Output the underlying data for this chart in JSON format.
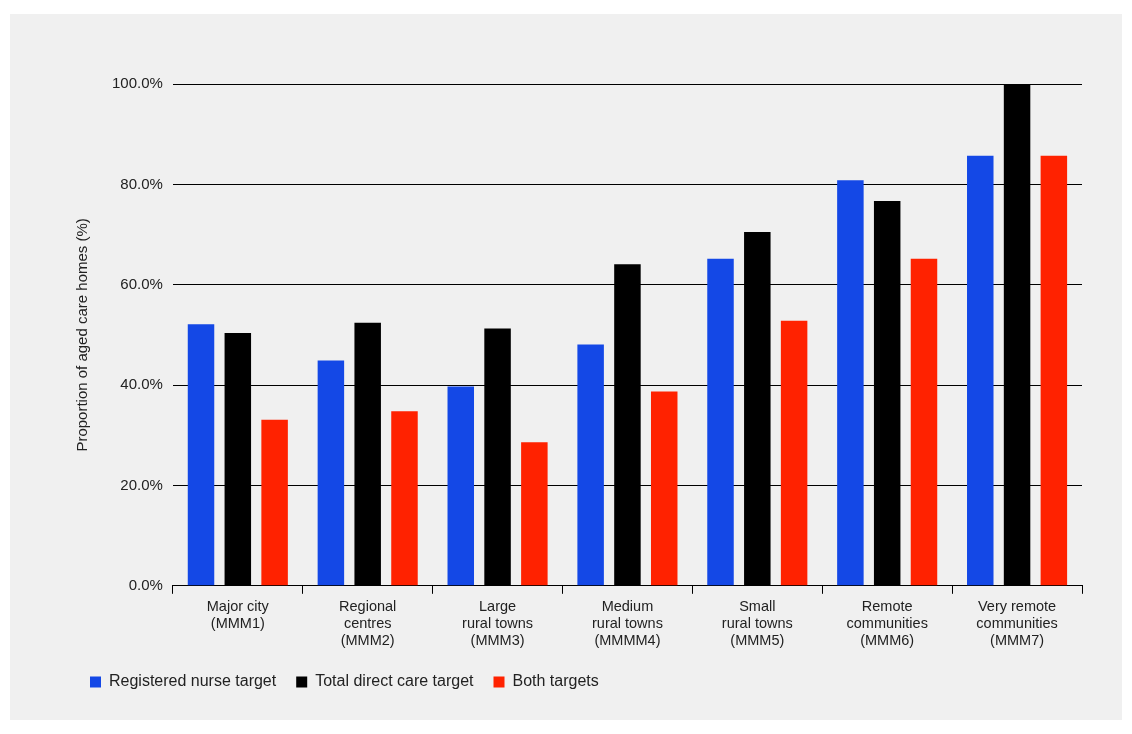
{
  "chart_data": {
    "type": "bar",
    "ylabel": "Proportion of aged care homes (%)",
    "categories": [
      "Major city (MMM1)",
      "Regional centres (MMM2)",
      "Large rural towns (MMM3)",
      "Medium rural towns (MMMM4)",
      "Small rural towns (MMM5)",
      "Remote communities (MMM6)",
      "Very remote communities (MMM7)"
    ],
    "series": [
      {
        "name": "Registered nurse target",
        "color": "#1448e6",
        "values": [
          52.1,
          44.9,
          39.7,
          48.1,
          65.2,
          80.8,
          85.7
        ]
      },
      {
        "name": "Total direct care target",
        "color": "#000000",
        "values": [
          50.4,
          52.4,
          51.3,
          64.1,
          70.5,
          76.7,
          100
        ]
      },
      {
        "name": "Both targets",
        "color": "#ff2200",
        "values": [
          33.1,
          34.8,
          28.6,
          38.7,
          52.8,
          65.2,
          85.7
        ]
      }
    ],
    "ylim": [
      0,
      100
    ],
    "yticks": [
      {
        "value": 0,
        "label": "0.0%"
      },
      {
        "value": 20,
        "label": "20.0%"
      },
      {
        "value": 40,
        "label": "40.0%"
      },
      {
        "value": 60,
        "label": "60.0%"
      },
      {
        "value": 80,
        "label": "80.0%"
      },
      {
        "value": 100,
        "label": "100.0%"
      }
    ],
    "grid": "y",
    "legend": "bottom left"
  }
}
